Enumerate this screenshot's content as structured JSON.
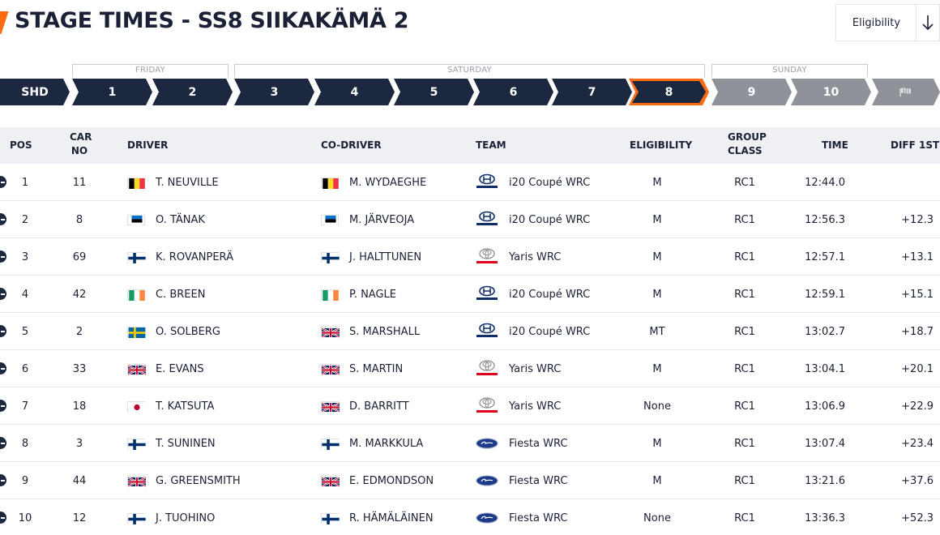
{
  "header": {
    "title": "STAGE TIMES - SS8 SIIKAKÄMÄ 2",
    "eligibility_filter": "Eligibility"
  },
  "days": [
    {
      "label": "FRIDAY"
    },
    {
      "label": "SATURDAY"
    },
    {
      "label": "SUNDAY"
    }
  ],
  "stages": [
    {
      "label": "SHD",
      "state": "completed"
    },
    {
      "label": "1",
      "state": "completed"
    },
    {
      "label": "2",
      "state": "completed"
    },
    {
      "label": "3",
      "state": "completed"
    },
    {
      "label": "4",
      "state": "completed"
    },
    {
      "label": "5",
      "state": "completed"
    },
    {
      "label": "6",
      "state": "completed"
    },
    {
      "label": "7",
      "state": "completed"
    },
    {
      "label": "8",
      "state": "active"
    },
    {
      "label": "9",
      "state": "upcoming"
    },
    {
      "label": "10",
      "state": "upcoming"
    },
    {
      "label": "finish-flag-icon",
      "state": "upcoming"
    }
  ],
  "colors": {
    "accent": "#ff6a13",
    "navy": "#1c2740",
    "upcoming": "#8f9399"
  },
  "table": {
    "headers": {
      "pos": "POS",
      "car_no_1": "CAR",
      "car_no_2": "NO",
      "driver": "DRIVER",
      "co_driver": "CO-DRIVER",
      "team": "TEAM",
      "eligibility": "ELIGIBILITY",
      "group_1": "GROUP",
      "group_2": "CLASS",
      "time": "TIME",
      "diff": "DIFF 1ST"
    },
    "rows": [
      {
        "pos": "1",
        "car": "11",
        "driver": "T. NEUVILLE",
        "driver_flag": "belgium",
        "codriver": "M. WYDAEGHE",
        "codriver_flag": "belgium",
        "team_logo": "hyundai",
        "team": "i20 Coupé WRC",
        "elig": "M",
        "group": "RC1",
        "time": "12:44.0",
        "diff": ""
      },
      {
        "pos": "2",
        "car": "8",
        "driver": "O. TÄNAK",
        "driver_flag": "estonia",
        "codriver": "M. JÄRVEOJA",
        "codriver_flag": "estonia",
        "team_logo": "hyundai",
        "team": "i20 Coupé WRC",
        "elig": "M",
        "group": "RC1",
        "time": "12:56.3",
        "diff": "+12.3"
      },
      {
        "pos": "3",
        "car": "69",
        "driver": "K. ROVANPERÄ",
        "driver_flag": "finland",
        "codriver": "J. HALTTUNEN",
        "codriver_flag": "finland",
        "team_logo": "toyota",
        "team": "Yaris WRC",
        "elig": "M",
        "group": "RC1",
        "time": "12:57.1",
        "diff": "+13.1"
      },
      {
        "pos": "4",
        "car": "42",
        "driver": "C. BREEN",
        "driver_flag": "ireland",
        "codriver": "P. NAGLE",
        "codriver_flag": "ireland",
        "team_logo": "hyundai",
        "team": "i20 Coupé WRC",
        "elig": "M",
        "group": "RC1",
        "time": "12:59.1",
        "diff": "+15.1"
      },
      {
        "pos": "5",
        "car": "2",
        "driver": "O. SOLBERG",
        "driver_flag": "sweden",
        "codriver": "S. MARSHALL",
        "codriver_flag": "uk",
        "team_logo": "hyundai",
        "team": "i20 Coupé WRC",
        "elig": "MT",
        "group": "RC1",
        "time": "13:02.7",
        "diff": "+18.7"
      },
      {
        "pos": "6",
        "car": "33",
        "driver": "E. EVANS",
        "driver_flag": "uk",
        "codriver": "S. MARTIN",
        "codriver_flag": "uk",
        "team_logo": "toyota",
        "team": "Yaris WRC",
        "elig": "M",
        "group": "RC1",
        "time": "13:04.1",
        "diff": "+20.1"
      },
      {
        "pos": "7",
        "car": "18",
        "driver": "T. KATSUTA",
        "driver_flag": "japan",
        "codriver": "D. BARRITT",
        "codriver_flag": "uk",
        "team_logo": "toyota",
        "team": "Yaris WRC",
        "elig": "None",
        "group": "RC1",
        "time": "13:06.9",
        "diff": "+22.9"
      },
      {
        "pos": "8",
        "car": "3",
        "driver": "T. SUNINEN",
        "driver_flag": "finland",
        "codriver": "M. MARKKULA",
        "codriver_flag": "finland",
        "team_logo": "ford",
        "team": "Fiesta WRC",
        "elig": "M",
        "group": "RC1",
        "time": "13:07.4",
        "diff": "+23.4"
      },
      {
        "pos": "9",
        "car": "44",
        "driver": "G. GREENSMITH",
        "driver_flag": "uk",
        "codriver": "E. EDMONDSON",
        "codriver_flag": "uk",
        "team_logo": "ford",
        "team": "Fiesta WRC",
        "elig": "M",
        "group": "RC1",
        "time": "13:21.6",
        "diff": "+37.6"
      },
      {
        "pos": "10",
        "car": "12",
        "driver": "J. TUOHINO",
        "driver_flag": "finland",
        "codriver": "R. HÄMÄLÄINEN",
        "codriver_flag": "finland",
        "team_logo": "ford",
        "team": "Fiesta WRC",
        "elig": "None",
        "group": "RC1",
        "time": "13:36.3",
        "diff": "+52.3"
      }
    ]
  }
}
